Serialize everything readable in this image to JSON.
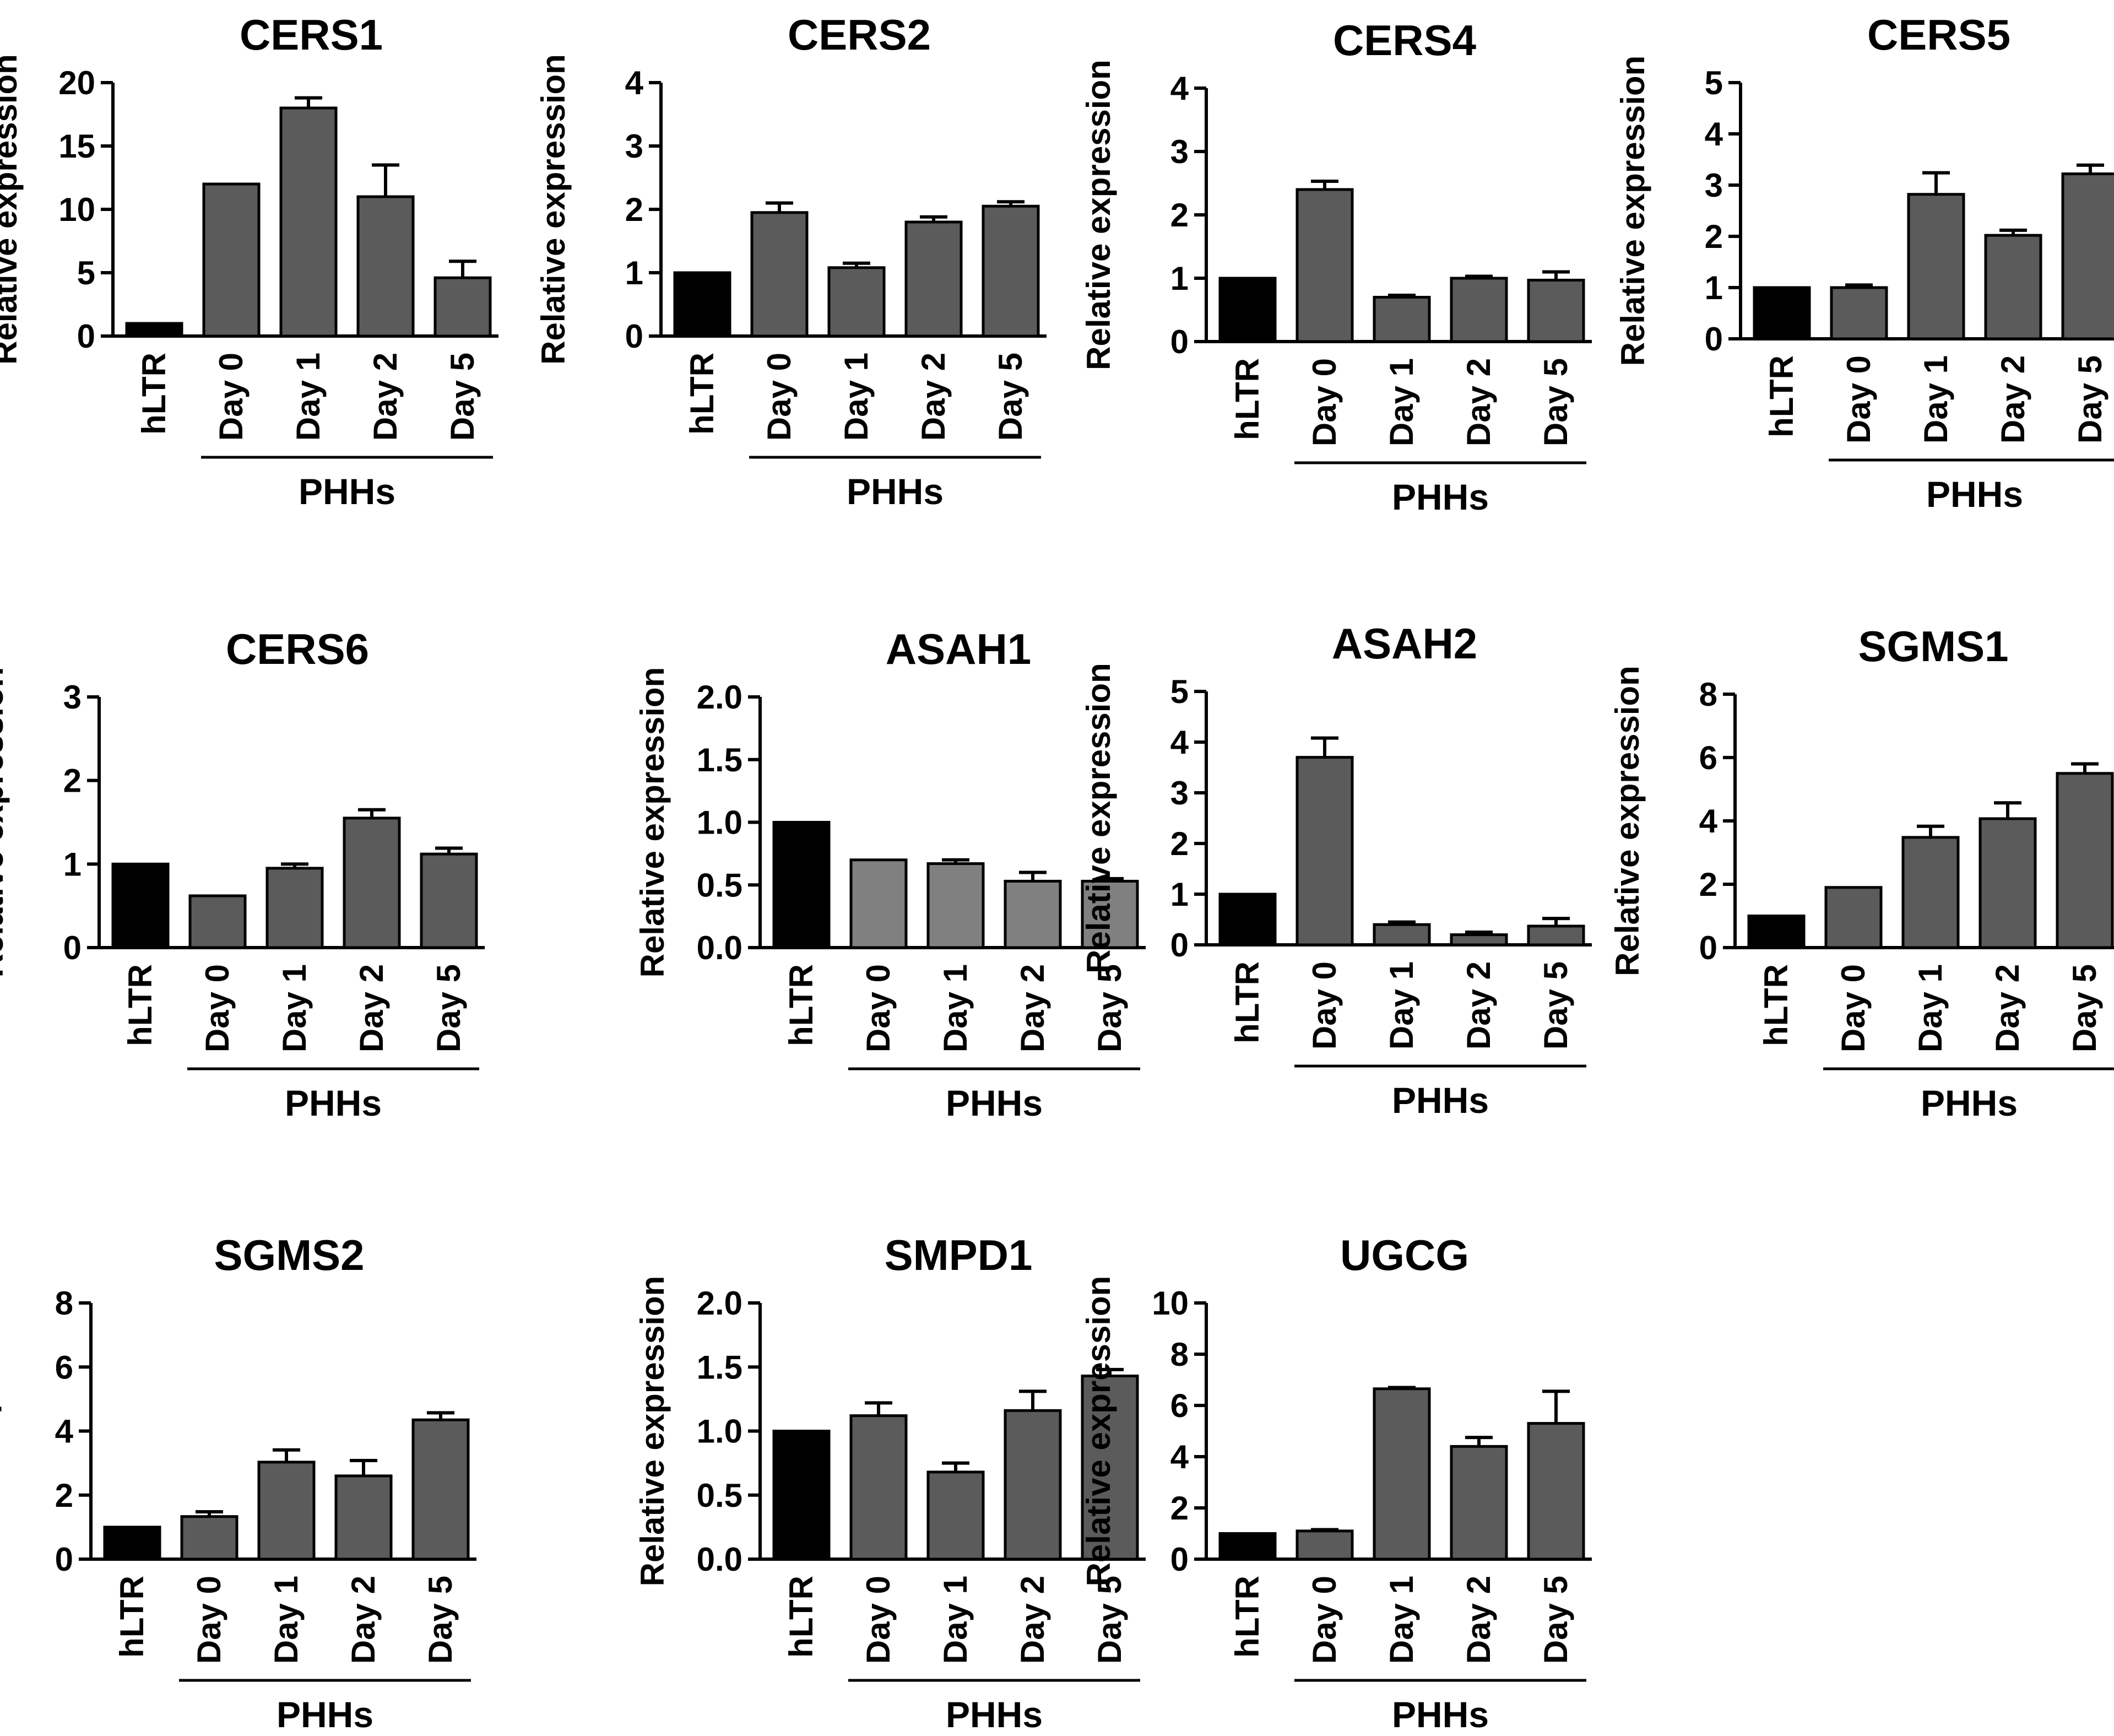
{
  "figure": {
    "bar_colors": {
      "reference": "#000000",
      "series": "#5b5b5b",
      "series_light": "#808080",
      "outline": "#000000"
    },
    "y_axis_label": "Relative expression",
    "group_label": "PHHs"
  },
  "chart_data": [
    {
      "type": "bar",
      "title": "CERS1",
      "ylabel": "Relative expression",
      "group_label": "PHHs",
      "categories": [
        "hLTR",
        "Day 0",
        "Day 1",
        "Day 2",
        "Day 5"
      ],
      "values": [
        1,
        12,
        18,
        11,
        4.6
      ],
      "errors": [
        0,
        0,
        0.8,
        2.5,
        1.3
      ],
      "ylim": [
        0,
        20
      ],
      "yticks": [
        "0",
        "5",
        "10",
        "15",
        "20"
      ]
    },
    {
      "type": "bar",
      "title": "CERS2",
      "ylabel": "Relative expression",
      "group_label": "PHHs",
      "categories": [
        "hLTR",
        "Day 0",
        "Day 1",
        "Day 2",
        "Day 5"
      ],
      "values": [
        1,
        1.95,
        1.08,
        1.8,
        2.05
      ],
      "errors": [
        0,
        0.15,
        0.07,
        0.08,
        0.07
      ],
      "ylim": [
        0,
        4
      ],
      "yticks": [
        "0",
        "1",
        "2",
        "3",
        "4"
      ]
    },
    {
      "type": "bar",
      "title": "CERS4",
      "ylabel": "Relative expression",
      "group_label": "PHHs",
      "categories": [
        "hLTR",
        "Day 0",
        "Day 1",
        "Day 2",
        "Day 5"
      ],
      "values": [
        1,
        2.4,
        0.7,
        1.0,
        0.97
      ],
      "errors": [
        0,
        0.13,
        0.03,
        0.03,
        0.13
      ],
      "ylim": [
        0,
        4
      ],
      "yticks": [
        "0",
        "1",
        "2",
        "3",
        "4"
      ]
    },
    {
      "type": "bar",
      "title": "CERS5",
      "ylabel": "Relative expression",
      "group_label": "PHHs",
      "categories": [
        "hLTR",
        "Day 0",
        "Day 1",
        "Day 2",
        "Day 5"
      ],
      "values": [
        1,
        1.0,
        2.82,
        2.02,
        3.22
      ],
      "errors": [
        0,
        0.05,
        0.42,
        0.1,
        0.17
      ],
      "ylim": [
        0,
        5
      ],
      "yticks": [
        "0",
        "1",
        "2",
        "3",
        "4",
        "5"
      ]
    },
    {
      "type": "bar",
      "title": "CERS6",
      "ylabel": "Relative expression",
      "group_label": "PHHs",
      "categories": [
        "hLTR",
        "Day 0",
        "Day 1",
        "Day 2",
        "Day 5"
      ],
      "values": [
        1,
        0.62,
        0.95,
        1.55,
        1.12
      ],
      "errors": [
        0,
        0,
        0.05,
        0.1,
        0.07
      ],
      "ylim": [
        0,
        3
      ],
      "yticks": [
        "0",
        "1",
        "2",
        "3"
      ]
    },
    {
      "type": "bar",
      "title": "ASAH1",
      "ylabel": "Relative expression",
      "group_label": "PHHs",
      "categories": [
        "hLTR",
        "Day 0",
        "Day 1",
        "Day 2",
        "Day 5"
      ],
      "values": [
        1.0,
        0.7,
        0.67,
        0.53,
        0.53
      ],
      "errors": [
        0,
        0,
        0.03,
        0.07,
        0.02
      ],
      "ylim": [
        0,
        2
      ],
      "yticks": [
        "0.0",
        "0.5",
        "1.0",
        "1.5",
        "2.0"
      ],
      "light_series": true
    },
    {
      "type": "bar",
      "title": "ASAH2",
      "ylabel": "Relative expression",
      "group_label": "PHHs",
      "categories": [
        "hLTR",
        "Day 0",
        "Day 1",
        "Day 2",
        "Day 5"
      ],
      "values": [
        1,
        3.7,
        0.4,
        0.2,
        0.37
      ],
      "errors": [
        0,
        0.38,
        0.05,
        0.05,
        0.15
      ],
      "ylim": [
        0,
        5
      ],
      "yticks": [
        "0",
        "1",
        "2",
        "3",
        "4",
        "5"
      ]
    },
    {
      "type": "bar",
      "title": "SGMS1",
      "ylabel": "Relative expression",
      "group_label": "PHHs",
      "categories": [
        "hLTR",
        "Day 0",
        "Day 1",
        "Day 2",
        "Day 5"
      ],
      "values": [
        1,
        1.9,
        3.48,
        4.07,
        5.5
      ],
      "errors": [
        0,
        0,
        0.35,
        0.5,
        0.3
      ],
      "ylim": [
        0,
        8
      ],
      "yticks": [
        "0",
        "2",
        "4",
        "6",
        "8"
      ]
    },
    {
      "type": "bar",
      "title": "SGMS2",
      "ylabel": "Relative expression",
      "group_label": "PHHs",
      "categories": [
        "hLTR",
        "Day 0",
        "Day 1",
        "Day 2",
        "Day 5"
      ],
      "values": [
        1,
        1.33,
        3.03,
        2.6,
        4.35
      ],
      "errors": [
        0,
        0.15,
        0.38,
        0.48,
        0.22
      ],
      "ylim": [
        0,
        8
      ],
      "yticks": [
        "0",
        "2",
        "4",
        "6",
        "8"
      ]
    },
    {
      "type": "bar",
      "title": "SMPD1",
      "ylabel": "Relative expression",
      "group_label": "PHHs",
      "categories": [
        "hLTR",
        "Day 0",
        "Day 1",
        "Day 2",
        "Day 5"
      ],
      "values": [
        1.0,
        1.12,
        0.68,
        1.16,
        1.43
      ],
      "errors": [
        0,
        0.1,
        0.07,
        0.15,
        0.05
      ],
      "ylim": [
        0,
        2
      ],
      "yticks": [
        "0.0",
        "0.5",
        "1.0",
        "1.5",
        "2.0"
      ]
    },
    {
      "type": "bar",
      "title": "UGCG",
      "ylabel": "Relative expression",
      "group_label": "PHHs",
      "categories": [
        "hLTR",
        "Day 0",
        "Day 1",
        "Day 2",
        "Day 5"
      ],
      "values": [
        1,
        1.1,
        6.65,
        4.4,
        5.3
      ],
      "errors": [
        0,
        0.05,
        0.05,
        0.35,
        1.25
      ],
      "ylim": [
        0,
        10
      ],
      "yticks": [
        "0",
        "2",
        "4",
        "6",
        "8",
        "10"
      ]
    }
  ]
}
